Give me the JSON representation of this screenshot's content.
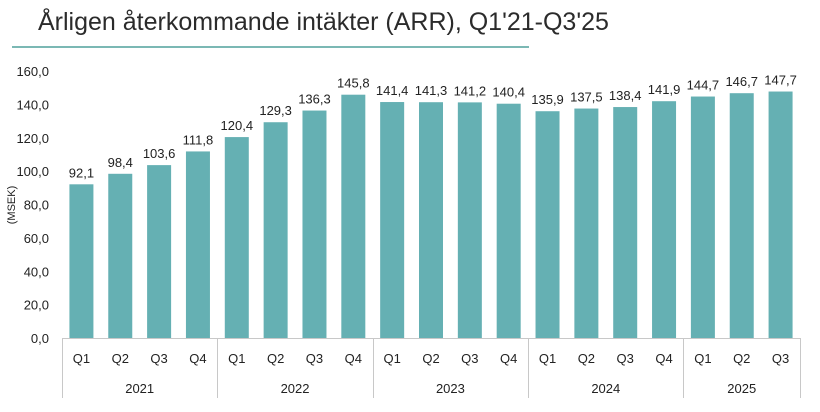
{
  "title": "Årligen återkommande intäkter (ARR), Q1'21-Q3'25",
  "colors": {
    "bar": "#65b0b3",
    "title_underline": "#7bb8b4",
    "axis_line": "#c8c8c8",
    "text": "#222222"
  },
  "chart_data": {
    "type": "bar",
    "title": "Årligen återkommande intäkter (ARR), Q1'21-Q3'25",
    "ylabel": "(MSEK)",
    "xlabel": "",
    "ylim": [
      0,
      160
    ],
    "yticks": [
      "0,0",
      "20,0",
      "40,0",
      "60,0",
      "80,0",
      "100,0",
      "120,0",
      "140,0",
      "160,0"
    ],
    "grid": false,
    "legend": "none",
    "groups": [
      {
        "label": "2021",
        "categories": [
          "Q1",
          "Q2",
          "Q3",
          "Q4"
        ]
      },
      {
        "label": "2022",
        "categories": [
          "Q1",
          "Q2",
          "Q3",
          "Q4"
        ]
      },
      {
        "label": "2023",
        "categories": [
          "Q1",
          "Q2",
          "Q3",
          "Q4"
        ]
      },
      {
        "label": "2024",
        "categories": [
          "Q1",
          "Q2",
          "Q3",
          "Q4"
        ]
      },
      {
        "label": "2025",
        "categories": [
          "Q1",
          "Q2",
          "Q3"
        ]
      }
    ],
    "values": [
      92.1,
      98.4,
      103.6,
      111.8,
      120.4,
      129.3,
      136.3,
      145.8,
      141.4,
      141.3,
      141.2,
      140.4,
      135.9,
      137.5,
      138.4,
      141.9,
      144.7,
      146.7,
      147.7
    ],
    "data_labels": [
      "92,1",
      "98,4",
      "103,6",
      "111,8",
      "120,4",
      "129,3",
      "136,3",
      "145,8",
      "141,4",
      "141,3",
      "141,2",
      "140,4",
      "135,9",
      "137,5",
      "138,4",
      "141,9",
      "144,7",
      "146,7",
      "147,7"
    ]
  }
}
